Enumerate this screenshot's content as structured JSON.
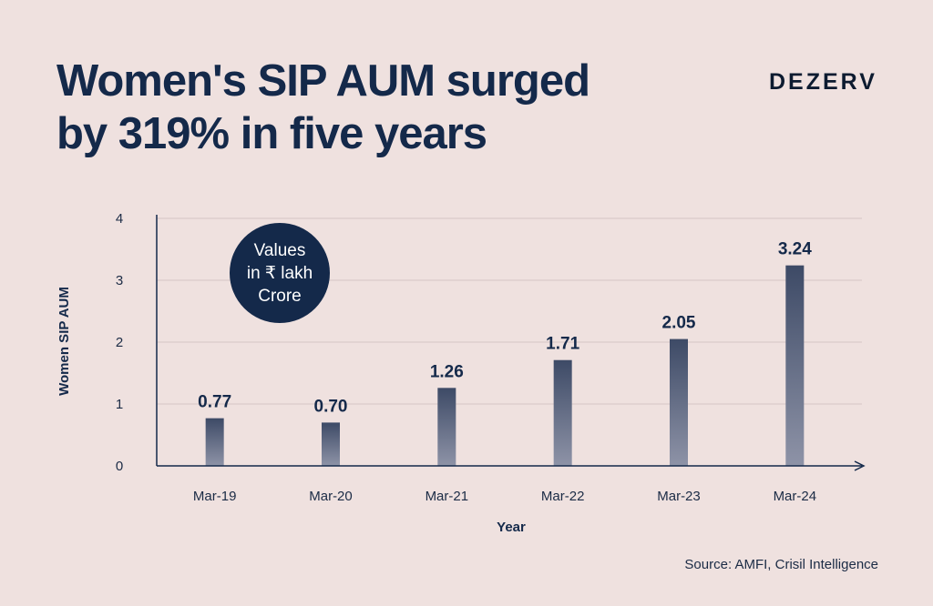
{
  "header": {
    "title_line1": "Women's SIP AUM surged",
    "title_line2": "by 319% in five years",
    "brand": "DEZERV"
  },
  "badge": {
    "line1": "Values",
    "line2": "in ₹ lakh",
    "line3": "Crore"
  },
  "footer": {
    "source": "Source: AMFI, Crisil Intelligence"
  },
  "chart_data": {
    "type": "bar",
    "title": "Women's SIP AUM surged by 319% in five years",
    "xlabel": "Year",
    "ylabel": "Women SIP AUM",
    "categories": [
      "Mar-19",
      "Mar-20",
      "Mar-21",
      "Mar-22",
      "Mar-23",
      "Mar-24"
    ],
    "values": [
      0.77,
      0.7,
      1.26,
      1.71,
      2.05,
      3.24
    ],
    "value_labels": [
      "0.77",
      "0.70",
      "1.26",
      "1.71",
      "2.05",
      "3.24"
    ],
    "yticks": [
      0,
      1,
      2,
      3,
      4
    ],
    "ylim": [
      0,
      4
    ],
    "grid": true,
    "legend": "none",
    "bar_color_top": "#3d4a66",
    "bar_color_bottom": "#8e93a7"
  }
}
